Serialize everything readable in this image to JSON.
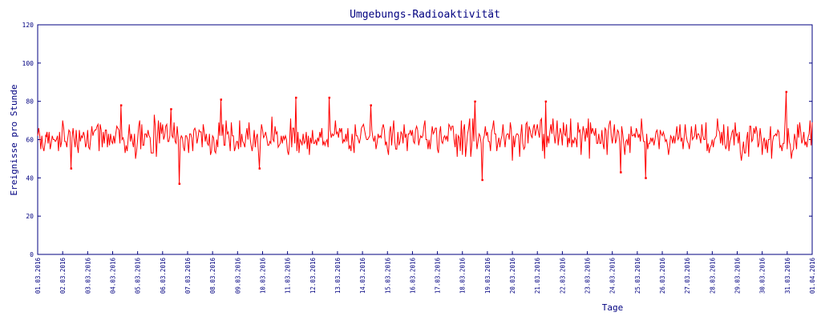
{
  "chart_data": {
    "type": "line",
    "title": "Umgebungs-Radioaktivität",
    "xlabel": "Tage",
    "ylabel": "Ereignisse pro Stunde",
    "ylim": [
      0,
      120
    ],
    "y_ticks": [
      0,
      20,
      40,
      60,
      80,
      100,
      120
    ],
    "x_ticks": [
      "01.03.2016",
      "02.03.2016",
      "03.03.2016",
      "04.03.2016",
      "05.03.2016",
      "06.03.2016",
      "07.03.2016",
      "08.03.2016",
      "09.03.2016",
      "10.03.2016",
      "11.03.2016",
      "12.03.2016",
      "13.03.2016",
      "14.03.2016",
      "15.03.2016",
      "16.03.2016",
      "17.03.2016",
      "18.03.2016",
      "19.03.2016",
      "20.03.2016",
      "21.03.2016",
      "22.03.2016",
      "23.03.2016",
      "24.03.2016",
      "25.03.2016",
      "26.03.2016",
      "27.03.2016",
      "28.03.2016",
      "29.03.2016",
      "30.03.2016",
      "31.03.2016",
      "01.04.2016"
    ],
    "grid": false,
    "series": [
      {
        "color": "#ff0000",
        "resolution": "hourly",
        "notable_points": [
          {
            "x": "01.03.2016",
            "y": 62
          },
          {
            "x": "02.03.2016",
            "y": 45
          },
          {
            "x": "04.03.2016",
            "y": 78
          },
          {
            "x": "06.03.2016",
            "y": 76
          },
          {
            "x": "06.03.2016 16:00",
            "y": 37
          },
          {
            "x": "08.03.2016",
            "y": 81
          },
          {
            "x": "09.03.2016 21:00",
            "y": 45
          },
          {
            "x": "11.03.2016",
            "y": 82
          },
          {
            "x": "12.03.2016 16:00",
            "y": 82
          },
          {
            "x": "14.03.2016",
            "y": 78
          },
          {
            "x": "18.03.2016 12:00",
            "y": 80
          },
          {
            "x": "18.03.2016 19:00",
            "y": 39
          },
          {
            "x": "21.03.2016",
            "y": 80
          },
          {
            "x": "24.03.2016",
            "y": 43
          },
          {
            "x": "25.03.2016",
            "y": 40
          },
          {
            "x": "30.03.2016 23:00",
            "y": 85
          }
        ],
        "typical_range": [
          50,
          72
        ],
        "mean": 61
      }
    ]
  }
}
